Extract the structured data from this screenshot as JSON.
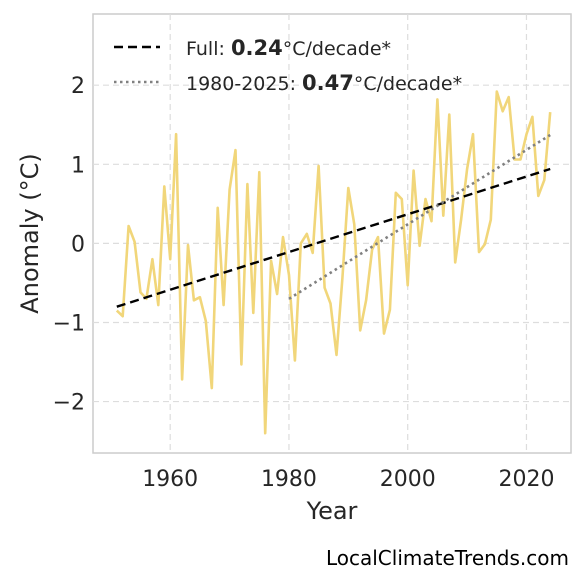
{
  "chart_data": {
    "type": "line",
    "xlabel": "Year",
    "ylabel": "Anomaly (°C)",
    "xlim": [
      1947,
      2027.5
    ],
    "ylim": [
      -2.65,
      2.9
    ],
    "xticks": [
      1960,
      1980,
      2000,
      2020
    ],
    "yticks": [
      2,
      1,
      0,
      -1,
      -2
    ],
    "ytick_labels": [
      "2",
      "1",
      "0",
      "−1",
      "−2"
    ],
    "grid": true,
    "legend_position": "top-left",
    "series": [
      {
        "style": "line",
        "color": "#f1d67a",
        "x": [
          1951,
          1952,
          1953,
          1954,
          1955,
          1956,
          1957,
          1958,
          1959,
          1960,
          1961,
          1962,
          1963,
          1964,
          1965,
          1966,
          1967,
          1968,
          1969,
          1970,
          1971,
          1972,
          1973,
          1974,
          1975,
          1976,
          1977,
          1978,
          1979,
          1980,
          1981,
          1982,
          1983,
          1984,
          1985,
          1986,
          1987,
          1988,
          1989,
          1990,
          1991,
          1992,
          1993,
          1994,
          1995,
          1996,
          1997,
          1998,
          1999,
          2000,
          2001,
          2002,
          2003,
          2004,
          2005,
          2006,
          2007,
          2008,
          2009,
          2010,
          2011,
          2012,
          2013,
          2014,
          2015,
          2016,
          2017,
          2018,
          2019,
          2020,
          2021,
          2022,
          2023,
          2024
        ],
        "values": [
          -0.85,
          -0.92,
          0.22,
          0.02,
          -0.62,
          -0.7,
          -0.2,
          -0.78,
          0.72,
          -0.2,
          1.38,
          -1.72,
          -0.02,
          -0.72,
          -0.68,
          -0.98,
          -1.83,
          0.45,
          -0.78,
          0.68,
          1.18,
          -1.53,
          0.75,
          -0.88,
          0.9,
          -2.4,
          -0.22,
          -0.64,
          0.08,
          -0.4,
          -1.48,
          0.0,
          0.12,
          -0.12,
          0.98,
          -0.56,
          -0.76,
          -1.41,
          -0.44,
          0.7,
          0.24,
          -1.1,
          -0.72,
          -0.08,
          0.08,
          -1.14,
          -0.84,
          0.64,
          0.56,
          -0.53,
          0.92,
          -0.03,
          0.56,
          0.28,
          1.82,
          0.35,
          1.63,
          -0.24,
          0.3,
          0.94,
          1.38,
          -0.11,
          -0.01,
          0.3,
          1.92,
          1.67,
          1.85,
          1.06,
          1.06,
          1.38,
          1.6,
          0.6,
          0.8,
          1.66
        ]
      },
      {
        "style": "dashed",
        "color": "#000000",
        "x": [
          1951,
          2024
        ],
        "values": [
          -0.8,
          0.94
        ]
      },
      {
        "style": "dotted",
        "color": "#808080",
        "x": [
          1980,
          2024
        ],
        "values": [
          -0.7,
          1.37
        ]
      }
    ],
    "legend": [
      {
        "prefix": "Full: ",
        "bold": "0.24",
        "suffix": "°C/decade*",
        "style": "dashed",
        "color": "#000000"
      },
      {
        "prefix": "1980-2025: ",
        "bold": "0.47",
        "suffix": "°C/decade*",
        "style": "dotted",
        "color": "#808080"
      }
    ]
  },
  "footer": {
    "source": "LocalClimateTrends.com"
  }
}
